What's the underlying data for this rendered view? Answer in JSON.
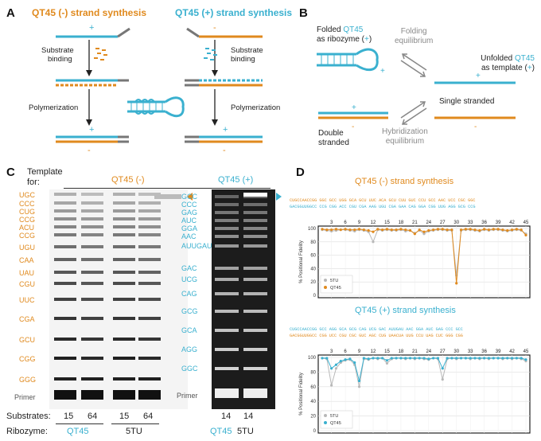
{
  "colors": {
    "orange": "#E08A1E",
    "cyan": "#3AB0CF",
    "gray": "#7d7d7d",
    "dark": "#222222"
  },
  "panelA": {
    "letter": "A",
    "title_left": "QT45 (-) strand synthesis",
    "title_right": "QT45 (+) strand synthesis",
    "substrate_binding": "Substrate\nbinding",
    "polymerization": "Polymerization",
    "plus": "+",
    "minus": "-"
  },
  "panelB": {
    "letter": "B",
    "folded_line1": "Folded",
    "folded_qt45": "QT45",
    "folded_line2": "as ribozyme (",
    "folded_plus": "+",
    "folded_close": ")",
    "folding_eq": "Folding\nequilibrium",
    "unfolded_line1": "Unfolded",
    "unfolded_qt45": "QT45",
    "unfolded_line2": "as template (",
    "unfolded_plus": "+",
    "unfolded_close": ")",
    "single_stranded": "Single stranded",
    "double_stranded": "Double\nstranded",
    "hybridization_eq": "Hybridization\nequilibrium",
    "plus": "+",
    "minus": "-"
  },
  "panelC": {
    "letter": "C",
    "template_for": "Template\nfor:",
    "left_template": "QT45 (-)",
    "right_template": "QT45 (+)",
    "left_labels": [
      "UGC",
      "CCC",
      "CUG",
      "CCG",
      "ACU",
      "CCG",
      "UGU",
      "CAA",
      "UAU",
      "CGU",
      "UUC",
      "CGA",
      "GCU",
      "CGG",
      "GGG"
    ],
    "right_labels": [
      "GCC",
      "CCC",
      "GAG",
      "AUC",
      "GGA",
      "AAC",
      "AUUGAU",
      "GAC",
      "UCG",
      "CAG",
      "GCG",
      "GCA",
      "AGG",
      "GGC"
    ],
    "primer": "Primer",
    "substrates_label": "Substrates:",
    "substrates_left": [
      "15",
      "64",
      "15",
      "64"
    ],
    "substrates_right": [
      "14",
      "14"
    ],
    "ribozyme_label": "Ribozyme:",
    "ribozyme_left": [
      "QT45",
      "5TU"
    ],
    "ribozyme_right": [
      "QT45",
      "5TU"
    ]
  },
  "panelD": {
    "letter": "D",
    "top_title": "QT45 (-) strand synthesis",
    "bottom_title": "QT45 (+) strand synthesis",
    "ylabel": "% Positional Fidelity",
    "legend": [
      "5TU",
      "QT45"
    ],
    "position_ticks": [
      "3",
      "6",
      "9",
      "12",
      "15",
      "18",
      "21",
      "24",
      "27",
      "30",
      "33",
      "36",
      "39",
      "42",
      "45"
    ],
    "y_ticks": [
      "100",
      "80",
      "60",
      "40",
      "20",
      "0"
    ],
    "top_seq_upper": "CUGCCAACCGG GGC GCC UGG GCA GCU UUC ACA GCU CUU GUC CCU GCC AAC UCC CGC GGC",
    "top_seq_lower": "GACGGUUGGCC CCG CGG ACC CGU CGA AAG UGU CGA GAA CAG GGA CGG UUG AGG GCG CCG",
    "bottom_seq_upper": "CUGCCAACCGG GCC AGG GCA GCG CAG UCG GAC AUUGAU AAC GGA AUC GAG CCC GCC",
    "bottom_seq_lower": "GACGGUUGGCC CGG UCC CGU CGC GUC AGC CUG UAACUA UUG CCU UAG CUC GGG CGG"
  },
  "chart_data": [
    {
      "type": "line",
      "title": "QT45 (-) strand synthesis",
      "xlabel": "",
      "ylabel": "% Positional Fidelity",
      "ylim": [
        0,
        100
      ],
      "xlim": [
        1,
        45
      ],
      "x": [
        1,
        2,
        3,
        4,
        5,
        6,
        7,
        8,
        9,
        10,
        11,
        12,
        13,
        14,
        15,
        16,
        17,
        18,
        19,
        20,
        21,
        22,
        23,
        24,
        25,
        26,
        27,
        28,
        29,
        30,
        31,
        32,
        33,
        34,
        35,
        36,
        37,
        38,
        39,
        40,
        41,
        42,
        43,
        44,
        45
      ],
      "series": [
        {
          "name": "5TU",
          "values": [
            98,
            97,
            96,
            97,
            98,
            98,
            97,
            96,
            98,
            97,
            95,
            80,
            98,
            97,
            98,
            97,
            97,
            98,
            96,
            97,
            93,
            97,
            92,
            96,
            97,
            98,
            98,
            97,
            97,
            30,
            97,
            98,
            98,
            97,
            96,
            98,
            97,
            98,
            98,
            97,
            96,
            97,
            98,
            97,
            92
          ]
        },
        {
          "name": "QT45",
          "values": [
            99,
            98,
            98,
            99,
            98,
            99,
            98,
            98,
            99,
            98,
            97,
            95,
            99,
            98,
            99,
            98,
            98,
            99,
            98,
            97,
            92,
            98,
            95,
            97,
            98,
            99,
            99,
            98,
            98,
            18,
            98,
            99,
            99,
            98,
            97,
            99,
            98,
            99,
            99,
            98,
            97,
            98,
            99,
            98,
            90
          ]
        }
      ],
      "legend": "bottom-left",
      "grid": true
    },
    {
      "type": "line",
      "title": "QT45 (+) strand synthesis",
      "xlabel": "",
      "ylabel": "% Positional Fidelity",
      "ylim": [
        0,
        100
      ],
      "xlim": [
        1,
        45
      ],
      "x": [
        1,
        2,
        3,
        4,
        5,
        6,
        7,
        8,
        9,
        10,
        11,
        12,
        13,
        14,
        15,
        16,
        17,
        18,
        19,
        20,
        21,
        22,
        23,
        24,
        25,
        26,
        27,
        28,
        29,
        30,
        31,
        32,
        33,
        34,
        35,
        36,
        37,
        38,
        39,
        40,
        41,
        42,
        43,
        44,
        45
      ],
      "series": [
        {
          "name": "5TU",
          "values": [
            99,
            98,
            62,
            85,
            93,
            96,
            97,
            90,
            60,
            98,
            97,
            99,
            98,
            99,
            92,
            98,
            99,
            99,
            98,
            99,
            98,
            99,
            98,
            97,
            99,
            98,
            70,
            98,
            99,
            98,
            99,
            99,
            98,
            99,
            98,
            99,
            98,
            99,
            99,
            98,
            99,
            98,
            99,
            98,
            95
          ]
        },
        {
          "name": "QT45",
          "values": [
            99,
            99,
            85,
            90,
            95,
            97,
            98,
            93,
            68,
            99,
            98,
            99,
            99,
            99,
            96,
            99,
            99,
            99,
            99,
            99,
            99,
            99,
            99,
            98,
            99,
            99,
            85,
            99,
            99,
            99,
            99,
            99,
            99,
            99,
            99,
            99,
            99,
            99,
            99,
            99,
            99,
            99,
            99,
            99,
            97
          ]
        }
      ],
      "legend": "bottom-left",
      "grid": true
    }
  ]
}
